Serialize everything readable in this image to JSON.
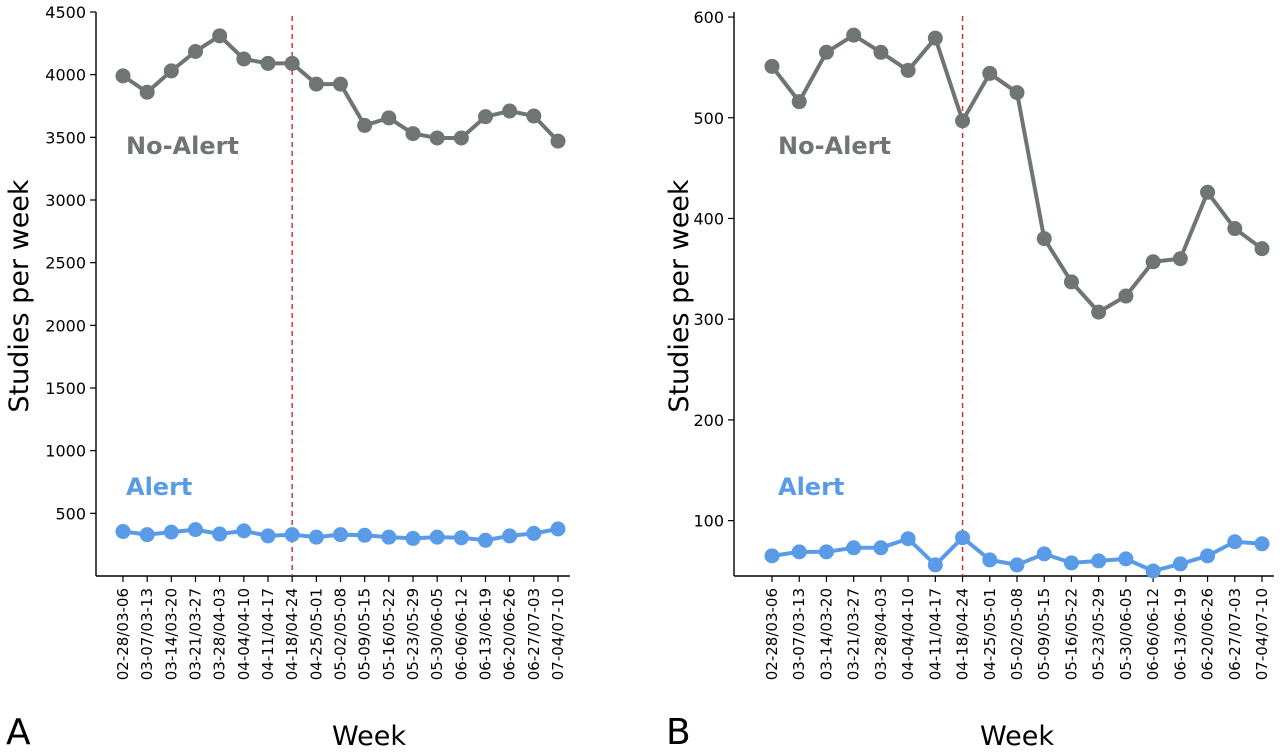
{
  "chart_data": [
    {
      "type": "line",
      "panel": "A",
      "xlabel": "Week",
      "ylabel": "Studies per week",
      "ylim": [
        0,
        4500
      ],
      "yticks": [
        500,
        1000,
        1500,
        2000,
        2500,
        3000,
        3500,
        4000,
        4500
      ],
      "categories": [
        "02-28/03-06",
        "03-07/03-13",
        "03-14/03-20",
        "03-21/03-27",
        "03-28/04-03",
        "04-04/04-10",
        "04-11/04-17",
        "04-18/04-24",
        "04-25/05-01",
        "05-02/05-08",
        "05-09/05-15",
        "05-16/05-22",
        "05-23/05-29",
        "05-30/06-05",
        "06-06/06-12",
        "06-13/06-19",
        "06-20/06-26",
        "06-27/07-03",
        "07-04/07-10"
      ],
      "vline_at": "04-18/04-24",
      "series": [
        {
          "name": "No-Alert",
          "color": "#6e7572",
          "values": [
            3990,
            3860,
            4030,
            4185,
            4310,
            4125,
            4090,
            4090,
            3925,
            3925,
            3595,
            3655,
            3530,
            3495,
            3495,
            3665,
            3710,
            3670,
            3470
          ]
        },
        {
          "name": "Alert",
          "color": "#5a9be8",
          "values": [
            355,
            330,
            350,
            370,
            335,
            360,
            320,
            330,
            310,
            330,
            325,
            310,
            300,
            310,
            305,
            285,
            320,
            340,
            375
          ]
        }
      ]
    },
    {
      "type": "line",
      "panel": "B",
      "xlabel": "Week",
      "ylabel": "Studies per week",
      "ylim": [
        45,
        605
      ],
      "yticks": [
        100,
        200,
        300,
        400,
        500,
        600
      ],
      "categories": [
        "02-28/03-06",
        "03-07/03-13",
        "03-14/03-20",
        "03-21/03-27",
        "03-28/04-03",
        "04-04/04-10",
        "04-11/04-17",
        "04-18/04-24",
        "04-25/05-01",
        "05-02/05-08",
        "05-09/05-15",
        "05-16/05-22",
        "05-23/05-29",
        "05-30/06-05",
        "06-06/06-12",
        "06-13/06-19",
        "06-20/06-26",
        "06-27/07-03",
        "07-04/07-10"
      ],
      "vline_at": "04-18/04-24",
      "series": [
        {
          "name": "No-Alert",
          "color": "#6e7572",
          "values": [
            551,
            516,
            565,
            582,
            565,
            547,
            579,
            497,
            544,
            525,
            380,
            337,
            307,
            323,
            357,
            360,
            426,
            390,
            370
          ]
        },
        {
          "name": "Alert",
          "color": "#5a9be8",
          "values": [
            65,
            69,
            69,
            73,
            73,
            82,
            56,
            83,
            61,
            56,
            67,
            58,
            60,
            62,
            50,
            57,
            65,
            79,
            77
          ]
        }
      ]
    }
  ]
}
